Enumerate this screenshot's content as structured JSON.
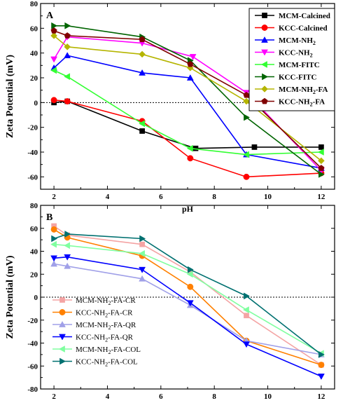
{
  "chart_data": [
    {
      "type": "line",
      "panel_label": "A",
      "xlabel": "pH",
      "ylabel": "Zeta Potential (mV)",
      "xlim": [
        1.5,
        12.5
      ],
      "ylim": [
        -70,
        80
      ],
      "xticks": [
        2,
        4,
        6,
        8,
        10,
        12
      ],
      "yticks": [
        -60,
        -40,
        -20,
        0,
        20,
        40,
        60,
        80
      ],
      "zero_line": "dotted",
      "legend_position": "top-right",
      "series": [
        {
          "name": "MCM-Calcined",
          "color": "#000000",
          "marker": "square",
          "x": [
            2,
            2.5,
            5.3,
            7.3,
            9.5,
            12
          ],
          "y": [
            0,
            1,
            -23,
            -37,
            -36,
            -36
          ]
        },
        {
          "name": "KCC-Calcined",
          "color": "#ff0000",
          "marker": "circle",
          "x": [
            2,
            2.5,
            5.3,
            7.1,
            9.2,
            12
          ],
          "y": [
            2,
            1,
            -15,
            -45,
            -60,
            -57
          ]
        },
        {
          "name": "MCM-NH",
          "sub": "2",
          "color": "#0000ff",
          "marker": "triangle-up",
          "x": [
            2,
            2.5,
            5.3,
            7.1,
            9.2,
            12
          ],
          "y": [
            28,
            38,
            24,
            20,
            -42,
            -53
          ]
        },
        {
          "name": "KCC-NH",
          "sub": "2",
          "color": "#ff00ff",
          "marker": "triangle-down",
          "x": [
            2,
            2.5,
            5.3,
            7.2,
            9.2,
            12
          ],
          "y": [
            35,
            53,
            48,
            37,
            8,
            -55
          ]
        },
        {
          "name": "MCM-FITC",
          "color": "#33ff33",
          "marker": "triangle-left",
          "x": [
            2,
            2.5,
            5.3,
            7.1,
            9.2,
            12
          ],
          "y": [
            26,
            21,
            -17,
            -37,
            -42,
            -40
          ]
        },
        {
          "name": "KCC-FITC",
          "color": "#006400",
          "marker": "triangle-right",
          "x": [
            2,
            2.5,
            5.3,
            7.1,
            9.2,
            12
          ],
          "y": [
            62,
            62,
            53,
            34,
            -12,
            -58
          ]
        },
        {
          "name": "MCM-NH",
          "sub": "2",
          "suffix": "-FA",
          "color": "#b5b500",
          "marker": "diamond",
          "x": [
            2,
            2.5,
            5.3,
            7.1,
            9.2,
            12
          ],
          "y": [
            54,
            45,
            39,
            28,
            1,
            -47
          ]
        },
        {
          "name": "KCC-NH",
          "sub": "2",
          "suffix": "-FA",
          "color": "#800000",
          "marker": "pentagon",
          "x": [
            2,
            2.5,
            5.3,
            7.1,
            9.2,
            12
          ],
          "y": [
            58,
            54,
            51,
            31,
            6,
            -53
          ]
        }
      ]
    },
    {
      "type": "line",
      "panel_label": "B",
      "xlabel": "pH",
      "ylabel": "Zeta Potential (mV)",
      "xlim": [
        1.5,
        12.5
      ],
      "ylim": [
        -80,
        80
      ],
      "xticks": [
        2,
        4,
        6,
        8,
        10,
        12
      ],
      "yticks": [
        -80,
        -60,
        -40,
        -20,
        0,
        20,
        40,
        60,
        80
      ],
      "zero_line": "dotted",
      "legend_position": "bottom-left",
      "series": [
        {
          "name": "MCM-NH",
          "sub": "2",
          "suffix": "-FA-CR",
          "color": "#f4a4a4",
          "marker": "square",
          "x": [
            2,
            2.5,
            5.3,
            7.1,
            9.2,
            12
          ],
          "y": [
            62,
            54,
            46,
            22,
            -16,
            -59
          ]
        },
        {
          "name": "KCC-NH",
          "sub": "2",
          "suffix": "-FA-CR",
          "color": "#ff8000",
          "marker": "circle",
          "x": [
            2,
            2.5,
            5.3,
            7.1,
            9.2,
            12
          ],
          "y": [
            59,
            52,
            36,
            9,
            -38,
            -59
          ]
        },
        {
          "name": "MCM-NH",
          "sub": "2",
          "suffix": "-FA-QR",
          "color": "#a0a0e8",
          "marker": "triangle-up",
          "x": [
            2,
            2.5,
            5.3,
            7.1,
            9.2,
            12
          ],
          "y": [
            29,
            27,
            16,
            -7,
            -38,
            -50
          ]
        },
        {
          "name": "KCC-NH",
          "sub": "2",
          "suffix": "-FA-QR",
          "color": "#0000ff",
          "marker": "triangle-down",
          "x": [
            2,
            2.5,
            5.3,
            7.1,
            9.2,
            12
          ],
          "y": [
            34,
            35,
            24,
            -5,
            -41,
            -69
          ]
        },
        {
          "name": "MCM-NH",
          "sub": "2",
          "suffix": "-FA-COL",
          "color": "#80ffa0",
          "marker": "triangle-left",
          "x": [
            2,
            2.5,
            5.3,
            7.1,
            9.2,
            12
          ],
          "y": [
            46,
            45,
            38,
            20,
            -11,
            -49
          ]
        },
        {
          "name": "KCC-NH",
          "sub": "2",
          "suffix": "-FA-COL",
          "color": "#007070",
          "marker": "triangle-right",
          "x": [
            2,
            2.5,
            5.3,
            7.1,
            9.2,
            12
          ],
          "y": [
            51,
            55,
            51,
            24,
            1,
            -50
          ]
        }
      ]
    }
  ]
}
